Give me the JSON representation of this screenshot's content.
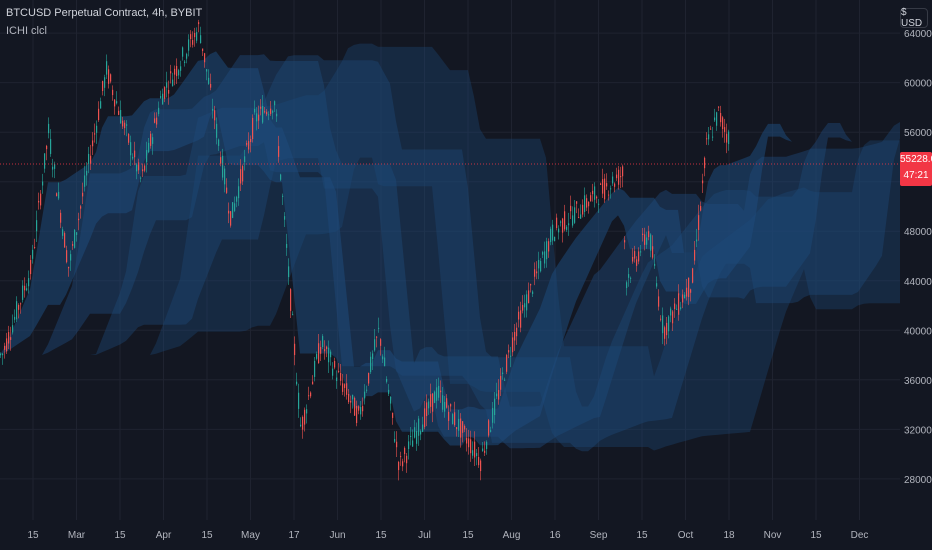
{
  "header": {
    "title": "BTCUSD Perpetual Contract, 4h, BYBIT",
    "indicator": "ICHI clcl",
    "currency_button": "$ USD"
  },
  "price_tag": {
    "price": "55228.0",
    "countdown": "47:21",
    "color": "#f23645"
  },
  "colors": {
    "background": "#131722",
    "cloud": "#2962ff",
    "cloud_fill": "#1e4a7a",
    "up_candle": "#26a69a",
    "down_candle": "#ef5350",
    "grid": "#1f2330",
    "axis_text": "#b2b5be"
  },
  "chart_data": {
    "type": "line",
    "subtype": "candlestick with ichimoku cloud",
    "ylabels": [
      "64000.0",
      "60000.0",
      "56000.0",
      "52000.0",
      "48000.0",
      "44000.0",
      "40000.0",
      "36000.0",
      "32000.0",
      "28000.0"
    ],
    "xlabels": [
      "15",
      "Mar",
      "15",
      "Apr",
      "15",
      "May",
      "17",
      "Jun",
      "15",
      "Jul",
      "15",
      "Aug",
      "16",
      "Sep",
      "15",
      "Oct",
      "18",
      "Nov",
      "15",
      "Dec"
    ],
    "ylim": [
      25000,
      67000
    ],
    "grid": true,
    "current_price": 55228.0,
    "approx_price_path": [
      {
        "x": "Feb 5",
        "y": 38000
      },
      {
        "x": "Feb 15",
        "y": 45000
      },
      {
        "x": "Feb 21",
        "y": 56000
      },
      {
        "x": "Feb 28",
        "y": 45000
      },
      {
        "x": "Mar 13",
        "y": 61000
      },
      {
        "x": "Mar 25",
        "y": 52000
      },
      {
        "x": "Apr 1",
        "y": 59000
      },
      {
        "x": "Apr 14",
        "y": 64500
      },
      {
        "x": "Apr 25",
        "y": 49000
      },
      {
        "x": "May 3",
        "y": 57000
      },
      {
        "x": "May 10",
        "y": 58500
      },
      {
        "x": "May 19",
        "y": 32000
      },
      {
        "x": "May 26",
        "y": 39000
      },
      {
        "x": "Jun 8",
        "y": 33000
      },
      {
        "x": "Jun 15",
        "y": 40000
      },
      {
        "x": "Jun 22",
        "y": 29000
      },
      {
        "x": "Jul 5",
        "y": 35000
      },
      {
        "x": "Jul 20",
        "y": 29500
      },
      {
        "x": "Aug 1",
        "y": 40000
      },
      {
        "x": "Aug 14",
        "y": 48000
      },
      {
        "x": "Sep 7",
        "y": 52700
      },
      {
        "x": "Sep 8",
        "y": 44000
      },
      {
        "x": "Sep 16",
        "y": 48000
      },
      {
        "x": "Sep 21",
        "y": 40000
      },
      {
        "x": "Oct 1",
        "y": 44000
      },
      {
        "x": "Oct 6",
        "y": 55000
      },
      {
        "x": "Oct 10",
        "y": 57500
      },
      {
        "x": "Oct 14",
        "y": 55228
      }
    ]
  }
}
